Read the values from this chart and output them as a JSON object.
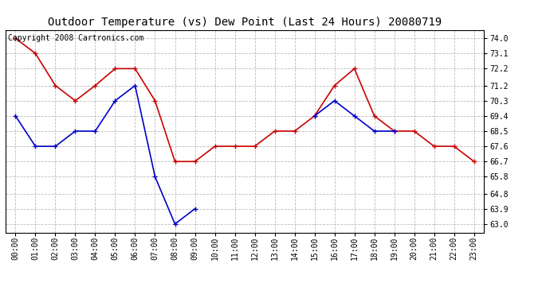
{
  "title": "Outdoor Temperature (vs) Dew Point (Last 24 Hours) 20080719",
  "copyright_text": "Copyright 2008 Cartronics.com",
  "x_labels": [
    "00:00",
    "01:00",
    "02:00",
    "03:00",
    "04:00",
    "05:00",
    "06:00",
    "07:00",
    "08:00",
    "09:00",
    "10:00",
    "11:00",
    "12:00",
    "13:00",
    "14:00",
    "15:00",
    "16:00",
    "17:00",
    "18:00",
    "19:00",
    "20:00",
    "21:00",
    "22:00",
    "23:00"
  ],
  "y_ticks": [
    63.0,
    63.9,
    64.8,
    65.8,
    66.7,
    67.6,
    68.5,
    69.4,
    70.3,
    71.2,
    72.2,
    73.1,
    74.0
  ],
  "ylim": [
    62.5,
    74.5
  ],
  "red_data": [
    74.0,
    73.1,
    71.2,
    70.3,
    71.2,
    72.2,
    72.2,
    70.3,
    66.7,
    66.7,
    67.6,
    67.6,
    67.6,
    68.5,
    68.5,
    69.4,
    71.2,
    72.2,
    69.4,
    68.5,
    68.5,
    67.6,
    67.6,
    66.7
  ],
  "blue_data": [
    69.4,
    67.6,
    67.6,
    68.5,
    68.5,
    70.3,
    71.2,
    65.8,
    63.0,
    63.9,
    null,
    null,
    null,
    null,
    null,
    69.4,
    70.3,
    69.4,
    68.5,
    68.5,
    null,
    null,
    null,
    null
  ],
  "red_color": "#cc0000",
  "blue_color": "#0000cc",
  "bg_color": "#ffffff",
  "plot_bg_color": "#ffffff",
  "grid_color": "#aaaaaa",
  "title_fontsize": 10,
  "copyright_fontsize": 7,
  "tick_fontsize": 7,
  "ytick_fontsize": 7,
  "marker": "+",
  "marker_size": 5,
  "linewidth": 1.2
}
